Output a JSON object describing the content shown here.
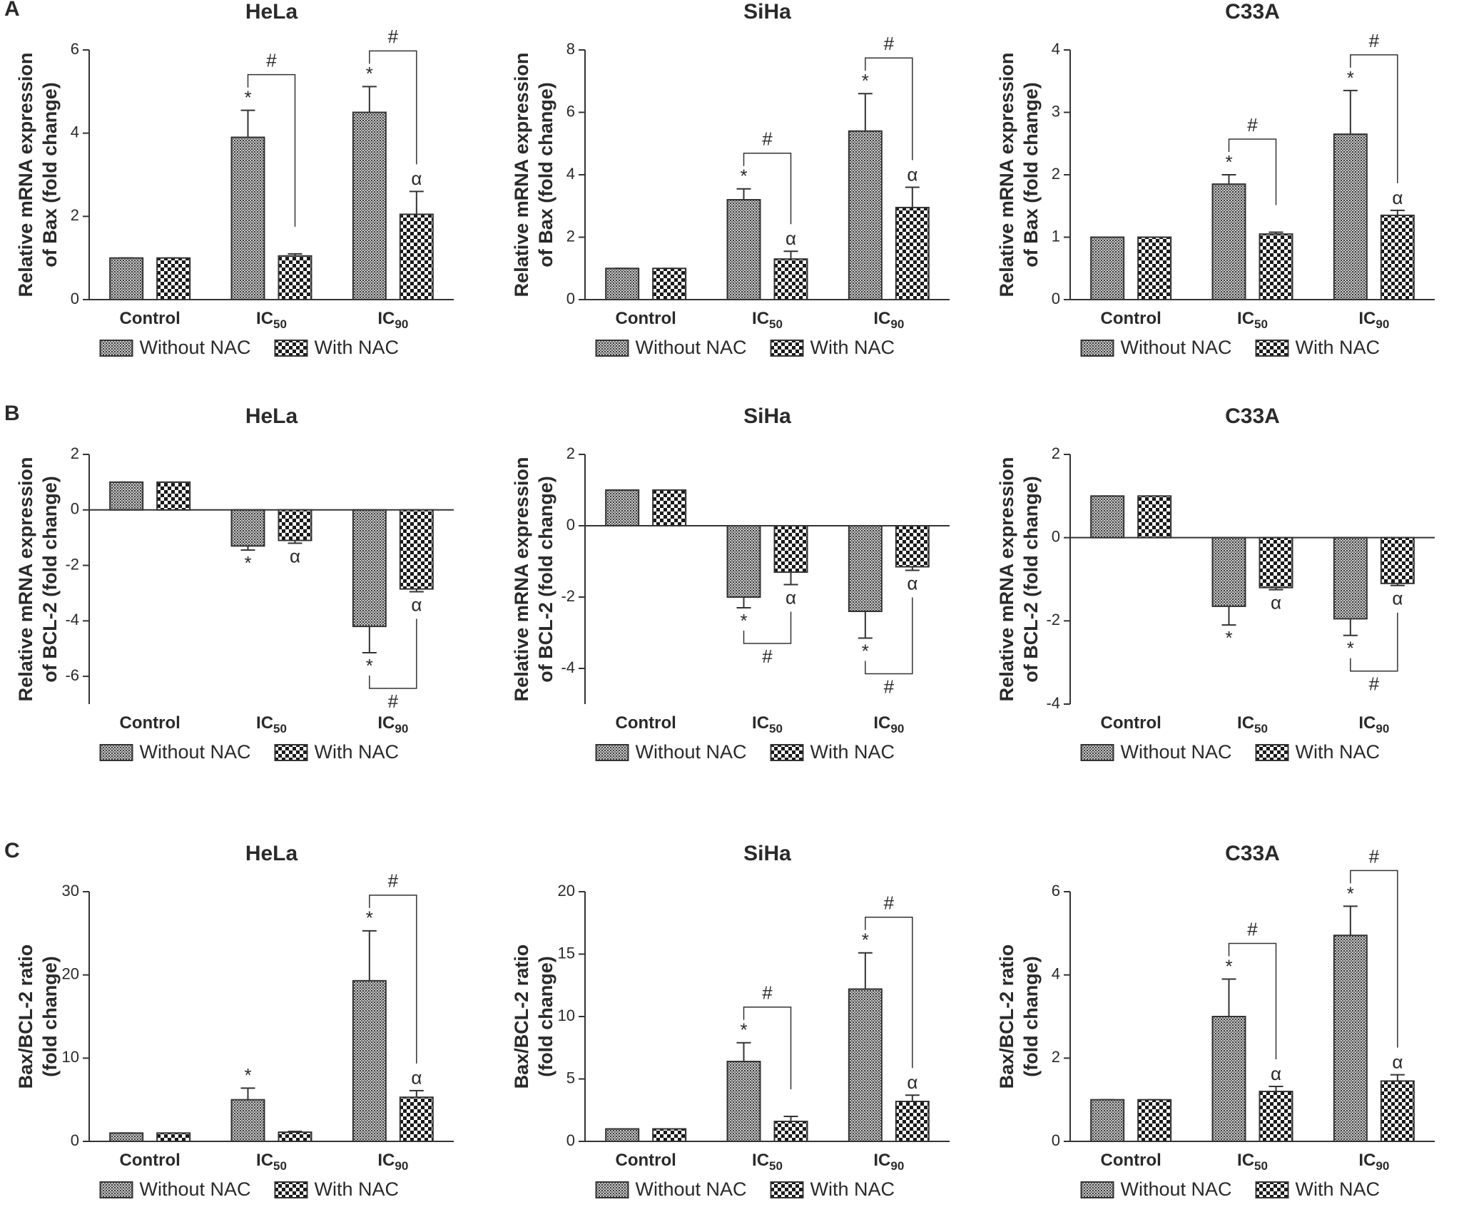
{
  "chart_data": [
    {
      "type": "bar",
      "panel": "A",
      "title": "HeLa",
      "ylabel": [
        "Relative mRNA expression",
        "of Bax (fold change)"
      ],
      "categories": [
        "Control",
        "IC",
        "IC"
      ],
      "category_subscripts": [
        null,
        "50",
        "90"
      ],
      "ylim": [
        0,
        6
      ],
      "yticks": [
        0,
        2,
        4,
        6
      ],
      "bracket_labels": [
        null,
        "#",
        "#"
      ],
      "series": [
        {
          "name": "Without NAC",
          "pattern": "dots",
          "values": [
            1,
            3.9,
            4.5
          ],
          "errors": [
            0,
            0.65,
            0.62
          ],
          "labels": [
            null,
            "*",
            "*"
          ]
        },
        {
          "name": "With NAC",
          "pattern": "checker",
          "values": [
            1,
            1.05,
            2.05
          ],
          "errors": [
            0,
            0.05,
            0.55
          ],
          "labels": [
            null,
            null,
            "α"
          ]
        }
      ]
    },
    {
      "type": "bar",
      "title": "SiHa",
      "ylabel": [
        "Relative mRNA expression",
        "of Bax (fold change)"
      ],
      "categories": [
        "Control",
        "IC",
        "IC"
      ],
      "category_subscripts": [
        null,
        "50",
        "90"
      ],
      "ylim": [
        0,
        8
      ],
      "yticks": [
        0,
        2,
        4,
        6,
        8
      ],
      "bracket_labels": [
        null,
        "#",
        "#"
      ],
      "series": [
        {
          "name": "Without NAC",
          "pattern": "dots",
          "values": [
            1,
            3.2,
            5.4
          ],
          "errors": [
            0,
            0.35,
            1.2
          ],
          "labels": [
            null,
            "*",
            "*"
          ]
        },
        {
          "name": "With NAC",
          "pattern": "checker",
          "values": [
            1,
            1.3,
            2.95
          ],
          "errors": [
            0,
            0.25,
            0.65
          ],
          "labels": [
            null,
            "α",
            "α"
          ]
        }
      ]
    },
    {
      "type": "bar",
      "title": "C33A",
      "ylabel": [
        "Relative mRNA expression",
        "of Bax (fold change)"
      ],
      "categories": [
        "Control",
        "IC",
        "IC"
      ],
      "category_subscripts": [
        null,
        "50",
        "90"
      ],
      "ylim": [
        0,
        4
      ],
      "yticks": [
        0,
        1,
        2,
        3,
        4
      ],
      "bracket_labels": [
        null,
        "#",
        "#"
      ],
      "series": [
        {
          "name": "Without NAC",
          "pattern": "dots",
          "values": [
            1,
            1.85,
            2.65
          ],
          "errors": [
            0,
            0.15,
            0.7
          ],
          "labels": [
            null,
            "*",
            "*"
          ]
        },
        {
          "name": "With NAC",
          "pattern": "checker",
          "values": [
            1,
            1.05,
            1.35
          ],
          "errors": [
            0,
            0.03,
            0.08
          ],
          "labels": [
            null,
            null,
            "α"
          ]
        }
      ]
    },
    {
      "type": "bar",
      "panel": "B",
      "title": "HeLa",
      "ylabel": [
        "Relative mRNA expression",
        "of BCL-2 (fold change)"
      ],
      "categories": [
        "Control",
        "IC",
        "IC"
      ],
      "category_subscripts": [
        null,
        "50",
        "90"
      ],
      "ylim": [
        -7,
        2
      ],
      "yticks": [
        2,
        0,
        -2,
        -4,
        -6
      ],
      "bracket_labels": [
        null,
        null,
        "#"
      ],
      "series": [
        {
          "name": "Without NAC",
          "pattern": "dots",
          "values": [
            1,
            -1.3,
            -4.2
          ],
          "errors": [
            0,
            0.15,
            0.95
          ],
          "labels": [
            null,
            "*",
            "*"
          ]
        },
        {
          "name": "With NAC",
          "pattern": "checker",
          "values": [
            1,
            -1.1,
            -2.85
          ],
          "errors": [
            0,
            0.1,
            0.1
          ],
          "labels": [
            null,
            "α",
            "α"
          ]
        }
      ]
    },
    {
      "type": "bar",
      "title": "SiHa",
      "ylabel": [
        "Relative mRNA expression",
        "of BCL-2 (fold change)"
      ],
      "categories": [
        "Control",
        "IC",
        "IC"
      ],
      "category_subscripts": [
        null,
        "50",
        "90"
      ],
      "ylim": [
        -5,
        2
      ],
      "yticks": [
        2,
        0,
        -2,
        -4
      ],
      "bracket_labels": [
        null,
        "#",
        "#"
      ],
      "series": [
        {
          "name": "Without NAC",
          "pattern": "dots",
          "values": [
            1,
            -2,
            -2.4
          ],
          "errors": [
            0,
            0.3,
            0.75
          ],
          "labels": [
            null,
            "*",
            "*"
          ]
        },
        {
          "name": "With NAC",
          "pattern": "checker",
          "values": [
            1,
            -1.3,
            -1.15
          ],
          "errors": [
            0,
            0.35,
            0.1
          ],
          "labels": [
            null,
            "α",
            "α"
          ]
        }
      ]
    },
    {
      "type": "bar",
      "title": "C33A",
      "ylabel": [
        "Relative mRNA expression",
        "of BCL-2 (fold change)"
      ],
      "categories": [
        "Control",
        "IC",
        "IC"
      ],
      "category_subscripts": [
        null,
        "50",
        "90"
      ],
      "ylim": [
        -4,
        2
      ],
      "yticks": [
        2,
        0,
        -2,
        -4
      ],
      "bracket_labels": [
        null,
        null,
        "#"
      ],
      "series": [
        {
          "name": "Without NAC",
          "pattern": "dots",
          "values": [
            1,
            -1.65,
            -1.95
          ],
          "errors": [
            0,
            0.45,
            0.4
          ],
          "labels": [
            null,
            "*",
            "*"
          ]
        },
        {
          "name": "With NAC",
          "pattern": "checker",
          "values": [
            1,
            -1.2,
            -1.1
          ],
          "errors": [
            0,
            0.05,
            0.05
          ],
          "labels": [
            null,
            "α",
            "α"
          ]
        }
      ]
    },
    {
      "type": "bar",
      "panel": "C",
      "title": "HeLa",
      "ylabel": [
        "Bax/BCL-2 ratio",
        "(fold change)"
      ],
      "categories": [
        "Control",
        "IC",
        "IC"
      ],
      "category_subscripts": [
        null,
        "50",
        "90"
      ],
      "ylim": [
        0,
        30
      ],
      "yticks": [
        0,
        10,
        20,
        30
      ],
      "bracket_labels": [
        null,
        null,
        "#"
      ],
      "series": [
        {
          "name": "Without NAC",
          "pattern": "dots",
          "values": [
            1,
            5,
            19.3
          ],
          "errors": [
            0,
            1.4,
            6
          ],
          "labels": [
            null,
            "*",
            "*"
          ]
        },
        {
          "name": "With NAC",
          "pattern": "checker",
          "values": [
            1,
            1.1,
            5.3
          ],
          "errors": [
            0,
            0.1,
            0.8
          ],
          "labels": [
            null,
            null,
            "α"
          ]
        }
      ]
    },
    {
      "type": "bar",
      "title": "SiHa",
      "ylabel": [
        "Bax/BCL-2 ratio",
        "(fold change)"
      ],
      "categories": [
        "Control",
        "IC",
        "IC"
      ],
      "category_subscripts": [
        null,
        "50",
        "90"
      ],
      "ylim": [
        0,
        20
      ],
      "yticks": [
        0,
        5,
        10,
        15,
        20
      ],
      "bracket_labels": [
        null,
        "#",
        "#"
      ],
      "series": [
        {
          "name": "Without NAC",
          "pattern": "dots",
          "values": [
            1,
            6.4,
            12.2
          ],
          "errors": [
            0,
            1.5,
            2.9
          ],
          "labels": [
            null,
            "*",
            "*"
          ]
        },
        {
          "name": "With NAC",
          "pattern": "checker",
          "values": [
            1,
            1.6,
            3.2
          ],
          "errors": [
            0,
            0.4,
            0.5
          ],
          "labels": [
            null,
            null,
            "α"
          ]
        }
      ]
    },
    {
      "type": "bar",
      "title": "C33A",
      "ylabel": [
        "Bax/BCL-2 ratio",
        "(fold change)"
      ],
      "categories": [
        "Control",
        "IC",
        "IC"
      ],
      "category_subscripts": [
        null,
        "50",
        "90"
      ],
      "ylim": [
        0,
        6
      ],
      "yticks": [
        0,
        2,
        4,
        6
      ],
      "bracket_labels": [
        null,
        "#",
        "#"
      ],
      "series": [
        {
          "name": "Without NAC",
          "pattern": "dots",
          "values": [
            1,
            3,
            4.95
          ],
          "errors": [
            0,
            0.9,
            0.7
          ],
          "labels": [
            null,
            "*",
            "*"
          ]
        },
        {
          "name": "With NAC",
          "pattern": "checker",
          "values": [
            1,
            1.2,
            1.45
          ],
          "errors": [
            0,
            0.12,
            0.15
          ],
          "labels": [
            null,
            "α",
            "α"
          ]
        }
      ]
    }
  ]
}
